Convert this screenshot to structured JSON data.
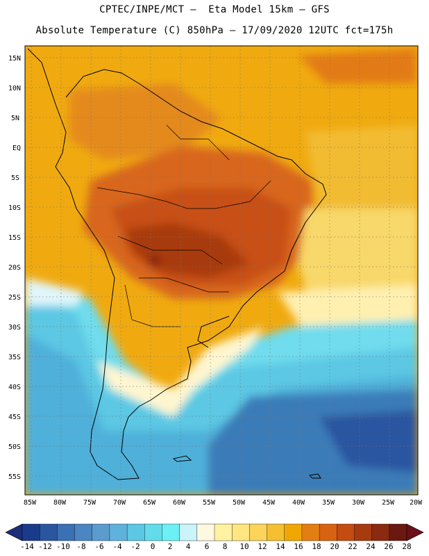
{
  "header": {
    "line1": "CPTEC/INPE/MCT –  Eta Model 15km – GFS",
    "line2": "Absolute Temperature (C) 850hPa – 17/09/2020 12UTC fct=175h"
  },
  "map": {
    "latitude_labels": [
      "15N",
      "10N",
      "5N",
      "EQ",
      "5S",
      "10S",
      "15S",
      "20S",
      "25S",
      "30S",
      "35S",
      "40S",
      "45S",
      "50S",
      "55S"
    ],
    "longitude_labels": [
      "85W",
      "80W",
      "75W",
      "70W",
      "65W",
      "60W",
      "55W",
      "50W",
      "45W",
      "40W",
      "35W",
      "30W",
      "25W",
      "20W"
    ]
  },
  "colorbar": {
    "labels": [
      "-14",
      "-12",
      "-10",
      "-8",
      "-6",
      "-4",
      "-2",
      "0",
      "2",
      "4",
      "6",
      "8",
      "10",
      "12",
      "14",
      "16",
      "18",
      "20",
      "22",
      "24",
      "26",
      "28"
    ],
    "colors": [
      "#1a3a8c",
      "#2a56a0",
      "#3a70b4",
      "#4b86c2",
      "#5a9cce",
      "#5fb2dc",
      "#5cc8e4",
      "#62dcea",
      "#6cf0f4",
      "#c8f4fa",
      "#fff8e0",
      "#fff2a0",
      "#ffe680",
      "#fcd45a",
      "#f5c030",
      "#f0a800",
      "#e47e10",
      "#d86212",
      "#c44c12",
      "#a83a10",
      "#8a2a10",
      "#6a1810"
    ]
  }
}
